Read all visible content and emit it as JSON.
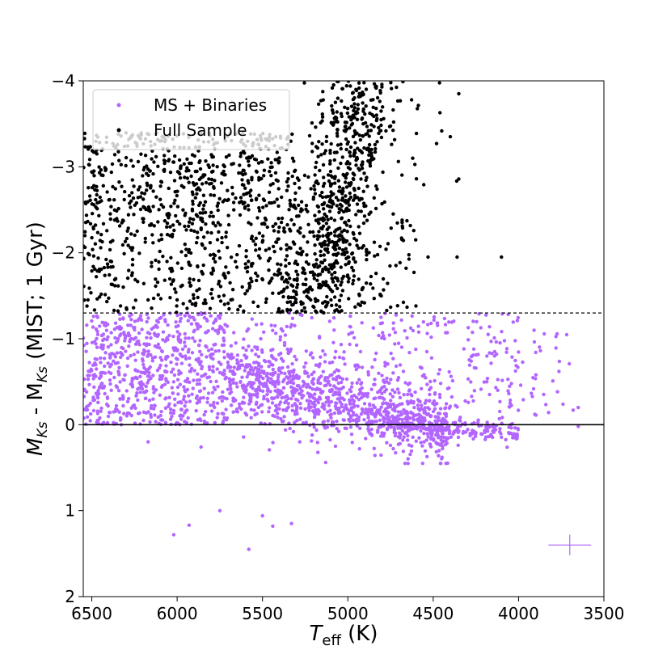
{
  "chart_data": {
    "type": "scatter",
    "x_axis": {
      "label_main": "T",
      "label_sub": "eff",
      "label_unit": " (K)",
      "lim": [
        6550,
        3500
      ],
      "inverted": true,
      "ticks": [
        6500,
        6000,
        5500,
        5000,
        4500,
        4000,
        3500
      ],
      "tick_labels": [
        "6500",
        "6000",
        "5500",
        "5000",
        "4500",
        "4000",
        "3500"
      ]
    },
    "y_axis": {
      "label_parts": [
        "M",
        "Ks",
        " - M",
        "Ks",
        " (MIST; 1 Gyr)"
      ],
      "lim": [
        2,
        -4
      ],
      "inverted": true,
      "ticks": [
        -4,
        -3,
        -2,
        -1,
        0,
        1,
        2
      ],
      "tick_labels": [
        "−4",
        "−3",
        "−2",
        "−1",
        "0",
        "1",
        "2"
      ]
    },
    "grid": false,
    "legend": {
      "placement": "top-left",
      "entries": [
        {
          "label": "MS + Binaries",
          "color": "#b266ff"
        },
        {
          "label": "Full Sample",
          "color": "#000000"
        }
      ]
    },
    "reference_lines": [
      {
        "y": -1.3,
        "style": "dashed",
        "color": "#000000"
      },
      {
        "y": 0,
        "style": "solid",
        "color": "#000000"
      }
    ],
    "error_bar": {
      "x": 3700,
      "y": 1.4,
      "x_err": 125,
      "y_err": 0.12,
      "color": "#b266ff"
    },
    "series": [
      {
        "name": "Full Sample",
        "color": "#000000",
        "y_range": [
          -4.0,
          -1.3
        ],
        "components": [
          {
            "kind": "band",
            "t_start": 5200,
            "t_end": 4900,
            "y_start": -1.3,
            "y_end": -4.0,
            "width": 120,
            "n": 650
          },
          {
            "kind": "cloud",
            "t_range": [
              6550,
              5300
            ],
            "y_range": [
              -3.4,
              -1.3
            ],
            "bias": "lower",
            "n": 900
          },
          {
            "kind": "cloud",
            "t_range": [
              5300,
              4600
            ],
            "y_range": [
              -2.6,
              -1.3
            ],
            "n": 120
          },
          {
            "kind": "cloud",
            "t_range": [
              4800,
              4300
            ],
            "y_range": [
              -4.0,
              -2.6
            ],
            "n": 12
          }
        ],
        "outliers": [
          {
            "x": 4100,
            "y": -1.95
          },
          {
            "x": 4360,
            "y": -1.95
          },
          {
            "x": 4530,
            "y": -1.95
          },
          {
            "x": 4350,
            "y": -3.85
          },
          {
            "x": 4400,
            "y": -3.35
          },
          {
            "x": 4620,
            "y": -3.1
          }
        ]
      },
      {
        "name": "MS + Binaries",
        "color": "#b266ff",
        "y_range": [
          -1.3,
          0.45
        ],
        "components": [
          {
            "kind": "cloud",
            "t_range": [
              6550,
              5700
            ],
            "y_range": [
              -1.3,
              0.0
            ],
            "n": 700
          },
          {
            "kind": "sequence",
            "t_range": [
              5700,
              4400
            ],
            "y_start": -0.55,
            "y_end": 0.05,
            "spread": 0.22,
            "n": 900
          },
          {
            "kind": "cloud",
            "t_range": [
              5700,
              4000
            ],
            "y_range": [
              -1.3,
              0.0
            ],
            "n": 300
          },
          {
            "kind": "sequence",
            "t_range": [
              4800,
              4000
            ],
            "y_start": 0.0,
            "y_end": 0.1,
            "spread": 0.06,
            "n": 200
          },
          {
            "kind": "cloud",
            "t_range": [
              4300,
              3700
            ],
            "y_range": [
              -1.1,
              0.0
            ],
            "n": 60
          }
        ],
        "outliers": [
          {
            "x": 6020,
            "y": 1.28
          },
          {
            "x": 5930,
            "y": 1.17
          },
          {
            "x": 5750,
            "y": 1.0
          },
          {
            "x": 5500,
            "y": 1.06
          },
          {
            "x": 5440,
            "y": 1.18
          },
          {
            "x": 5330,
            "y": 1.15
          },
          {
            "x": 5580,
            "y": 1.45
          },
          {
            "x": 5860,
            "y": 0.26
          },
          {
            "x": 6170,
            "y": 0.2
          },
          {
            "x": 5130,
            "y": 0.44
          },
          {
            "x": 3650,
            "y": -0.2
          },
          {
            "x": 3680,
            "y": -0.17
          },
          {
            "x": 3650,
            "y": 0.02
          }
        ]
      }
    ]
  }
}
